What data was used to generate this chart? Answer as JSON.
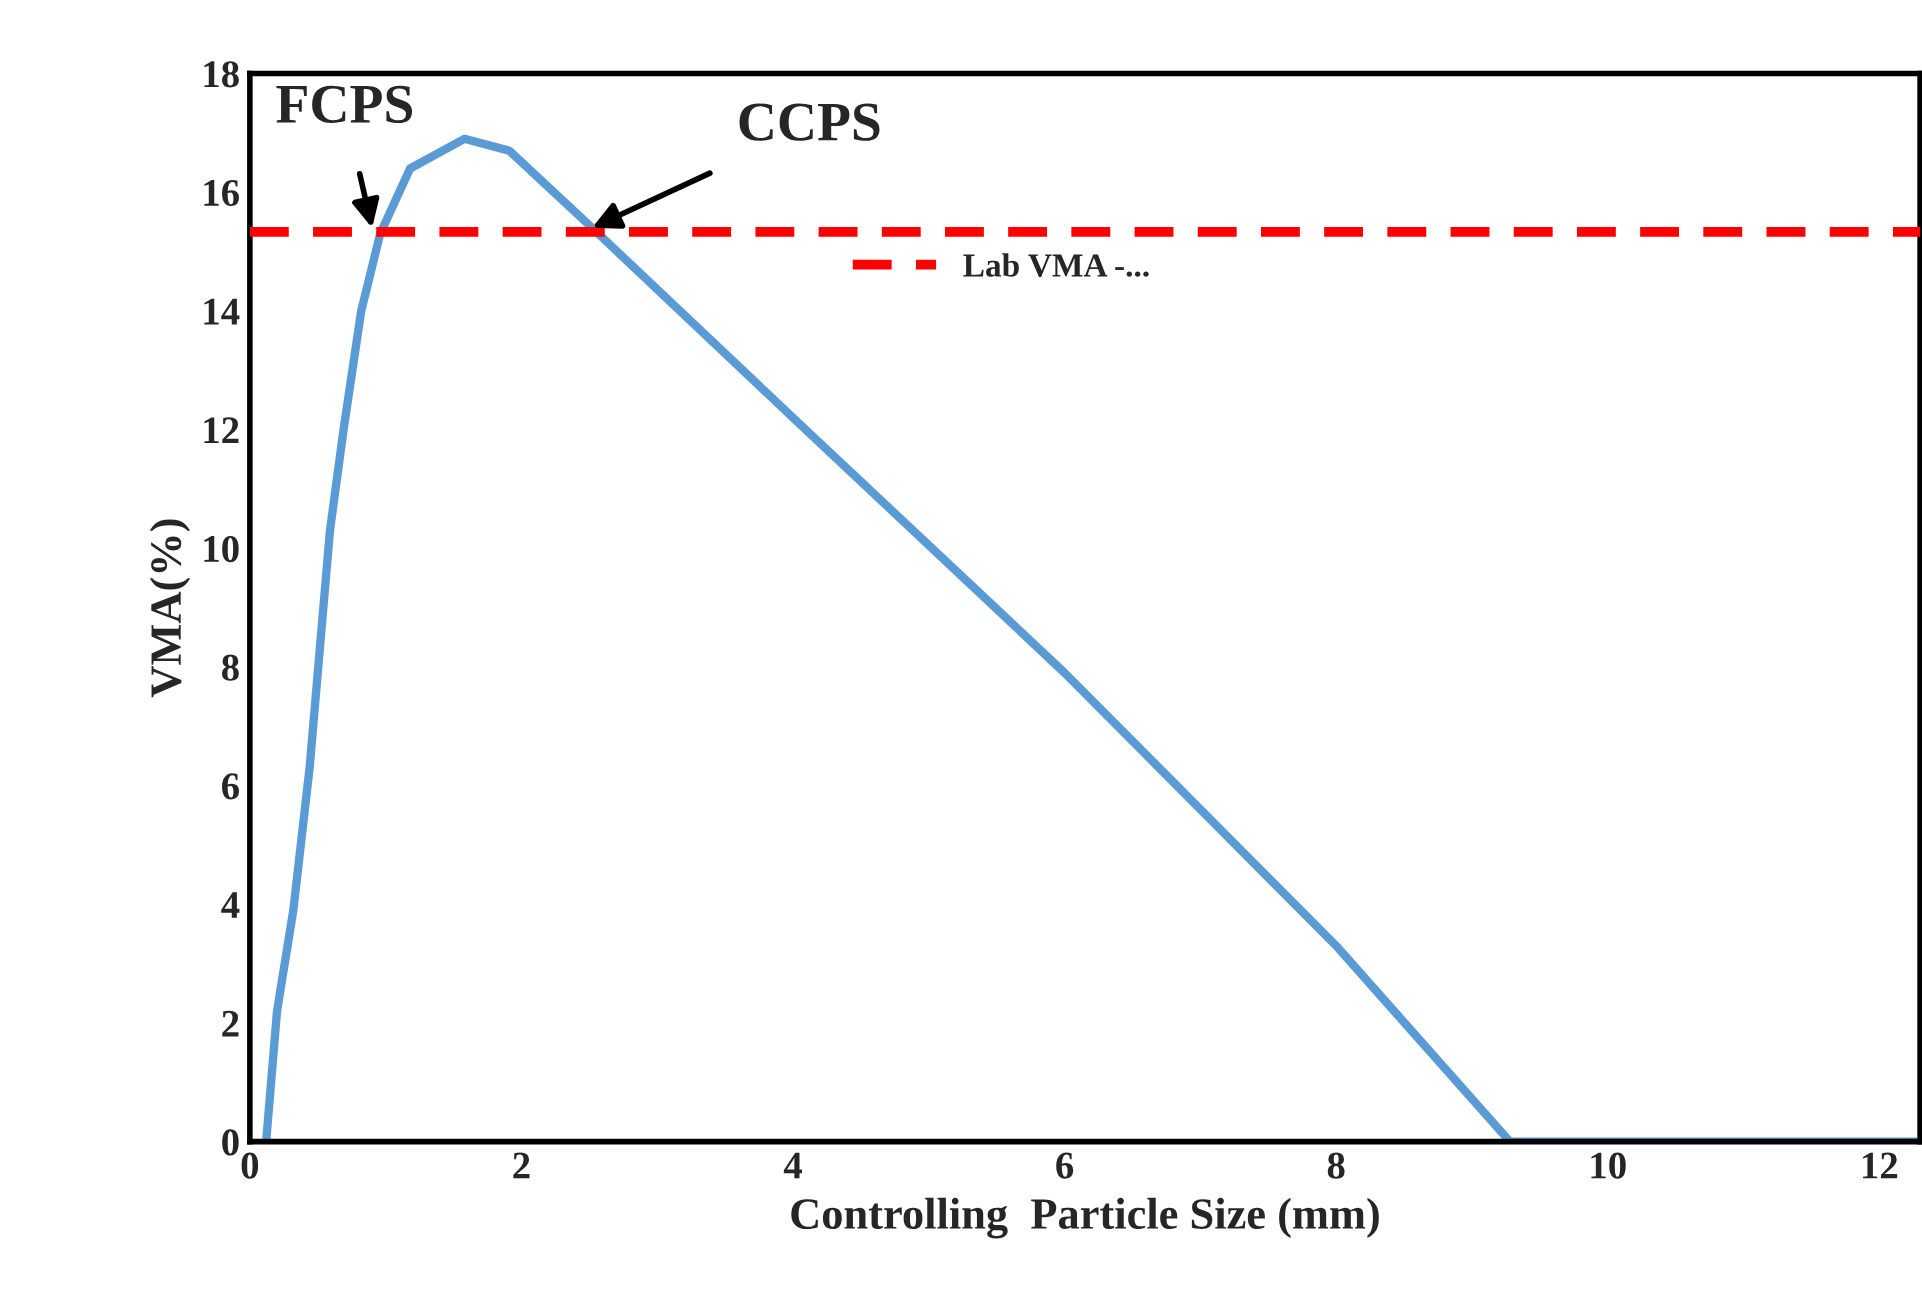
{
  "chart_data": {
    "type": "line",
    "xlabel": "Controlling  Particle Size (mm)",
    "ylabel": "VMA(%)",
    "series": [
      {
        "color": "#5b9bd5",
        "x": [
          0.12,
          0.2,
          0.32,
          0.44,
          0.59,
          0.69,
          0.82,
          0.96,
          1.18,
          1.58,
          1.91,
          2.52,
          4.0,
          6.0,
          8.0,
          9.28,
          12.3
        ],
        "values": [
          0,
          2.2,
          3.9,
          6.3,
          10.3,
          12.0,
          14.0,
          15.3,
          16.4,
          16.9,
          16.7,
          15.4,
          12.2,
          7.9,
          3.3,
          0,
          0
        ]
      }
    ],
    "ref_lines": [
      {
        "axis": "y",
        "value": 15.33,
        "label": "Lab VMA -...",
        "color": "#ff0000",
        "line_style": "dashed"
      }
    ],
    "annotations": [
      {
        "text": "FCPS",
        "x": 0.9,
        "y": 15.4
      },
      {
        "text": "CCPS",
        "x": 2.52,
        "y": 15.4
      }
    ],
    "xlim": [
      0,
      12.3
    ],
    "xticks": [
      0,
      2,
      4,
      6,
      8,
      10,
      12
    ],
    "ylim": [
      0,
      18
    ],
    "yticks": [
      0,
      2,
      4,
      6,
      8,
      10,
      12,
      14,
      16,
      18
    ],
    "grid": false,
    "legend": "top"
  }
}
